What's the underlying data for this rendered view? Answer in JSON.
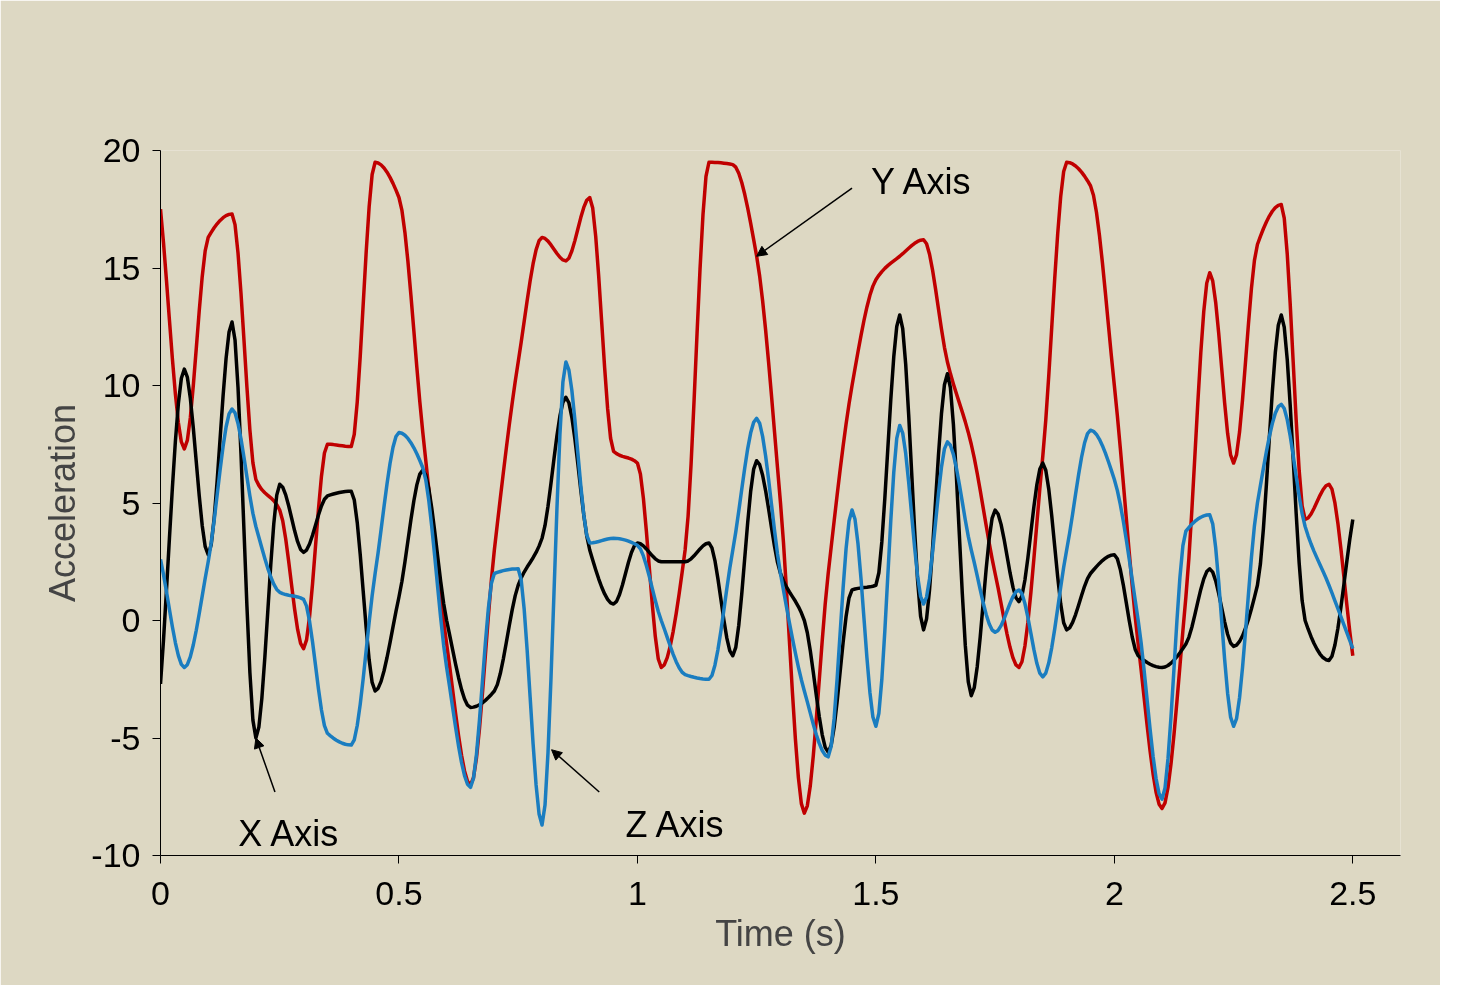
{
  "chart_data": {
    "type": "line",
    "xlabel": "Time (s)",
    "ylabel": "Acceleration",
    "x": [
      0,
      0.05,
      0.1,
      0.15,
      0.2,
      0.25,
      0.3,
      0.35,
      0.4,
      0.45,
      0.5,
      0.55,
      0.6,
      0.65,
      0.7,
      0.75,
      0.8,
      0.85,
      0.9,
      0.95,
      1.0,
      1.05,
      1.1,
      1.15,
      1.2,
      1.25,
      1.3,
      1.35,
      1.4,
      1.45,
      1.5,
      1.55,
      1.6,
      1.65,
      1.7,
      1.75,
      1.8,
      1.85,
      1.9,
      1.95,
      2.0,
      2.05,
      2.1,
      2.15,
      2.2,
      2.25,
      2.3,
      2.35,
      2.4,
      2.45,
      2.5
    ],
    "series": [
      {
        "color": "#c00000",
        "values": [
          17.5,
          7.3,
          16.3,
          17.3,
          6,
          4.7,
          -1.2,
          7.5,
          7.4,
          19.5,
          18,
          8,
          -1,
          -7,
          3,
          11,
          16.3,
          15.3,
          18,
          7.2,
          6.7,
          -2,
          3,
          19.5,
          19.4,
          15.5,
          5,
          -8.2,
          2,
          10,
          14.5,
          15.5,
          16.2,
          11,
          7.5,
          2,
          -2,
          7,
          19.5,
          18.5,
          10,
          -1,
          -8,
          1,
          14.8,
          6.7,
          16,
          17.7,
          4.3,
          5.8,
          -1.5
        ]
      },
      {
        "color": "#000000",
        "values": [
          -2.7,
          10.7,
          2.8,
          12.7,
          -5,
          5.8,
          2.9,
          5.3,
          5.5,
          -3,
          1,
          6.4,
          0,
          -3.7,
          -3,
          1.5,
          3.5,
          9.5,
          3,
          0.7,
          3.3,
          2.5,
          2.5,
          3.3,
          -1.5,
          6.8,
          2,
          0,
          -5.6,
          1.3,
          1.5,
          13,
          -0.4,
          10.5,
          -3.2,
          4.7,
          0.8,
          6.7,
          -0.4,
          2,
          2.8,
          -1.5,
          -2,
          -1,
          2.2,
          -1.1,
          1.5,
          13,
          0,
          -1.7,
          4.3
        ]
      },
      {
        "color": "#1a7dc0",
        "values": [
          2.6,
          -2,
          2.5,
          9,
          4,
          1.2,
          0.9,
          -4.8,
          -5.3,
          2,
          8,
          6.5,
          -2,
          -7.1,
          2,
          2.2,
          -8.7,
          11,
          3.3,
          3.5,
          3.2,
          0,
          -2.3,
          -2.5,
          3,
          8.6,
          2,
          -3,
          -5.8,
          4.7,
          -4.5,
          8.3,
          0.7,
          7.6,
          3,
          -0.5,
          1.3,
          -2.4,
          3,
          8.1,
          6,
          0,
          -7.6,
          3.8,
          4.5,
          -4.5,
          5,
          9.2,
          4,
          1.5,
          -1.2
        ]
      }
    ],
    "annotations": [
      {
        "text": "Y Axis",
        "x": 1.25,
        "y": 15.5
      },
      {
        "text": "X Axis",
        "x": 0.2,
        "y": -5
      },
      {
        "text": "Z Axis",
        "x": 0.82,
        "y": -5.5
      }
    ],
    "xlim": [
      0,
      2.6
    ],
    "xticks": [
      0,
      0.5,
      1,
      1.5,
      2,
      2.5
    ],
    "ylim": [
      -10,
      20
    ],
    "yticks": [
      -10,
      -5,
      0,
      5,
      10,
      15,
      20
    ],
    "grid": false,
    "marker": "none",
    "line_style": "solid"
  }
}
